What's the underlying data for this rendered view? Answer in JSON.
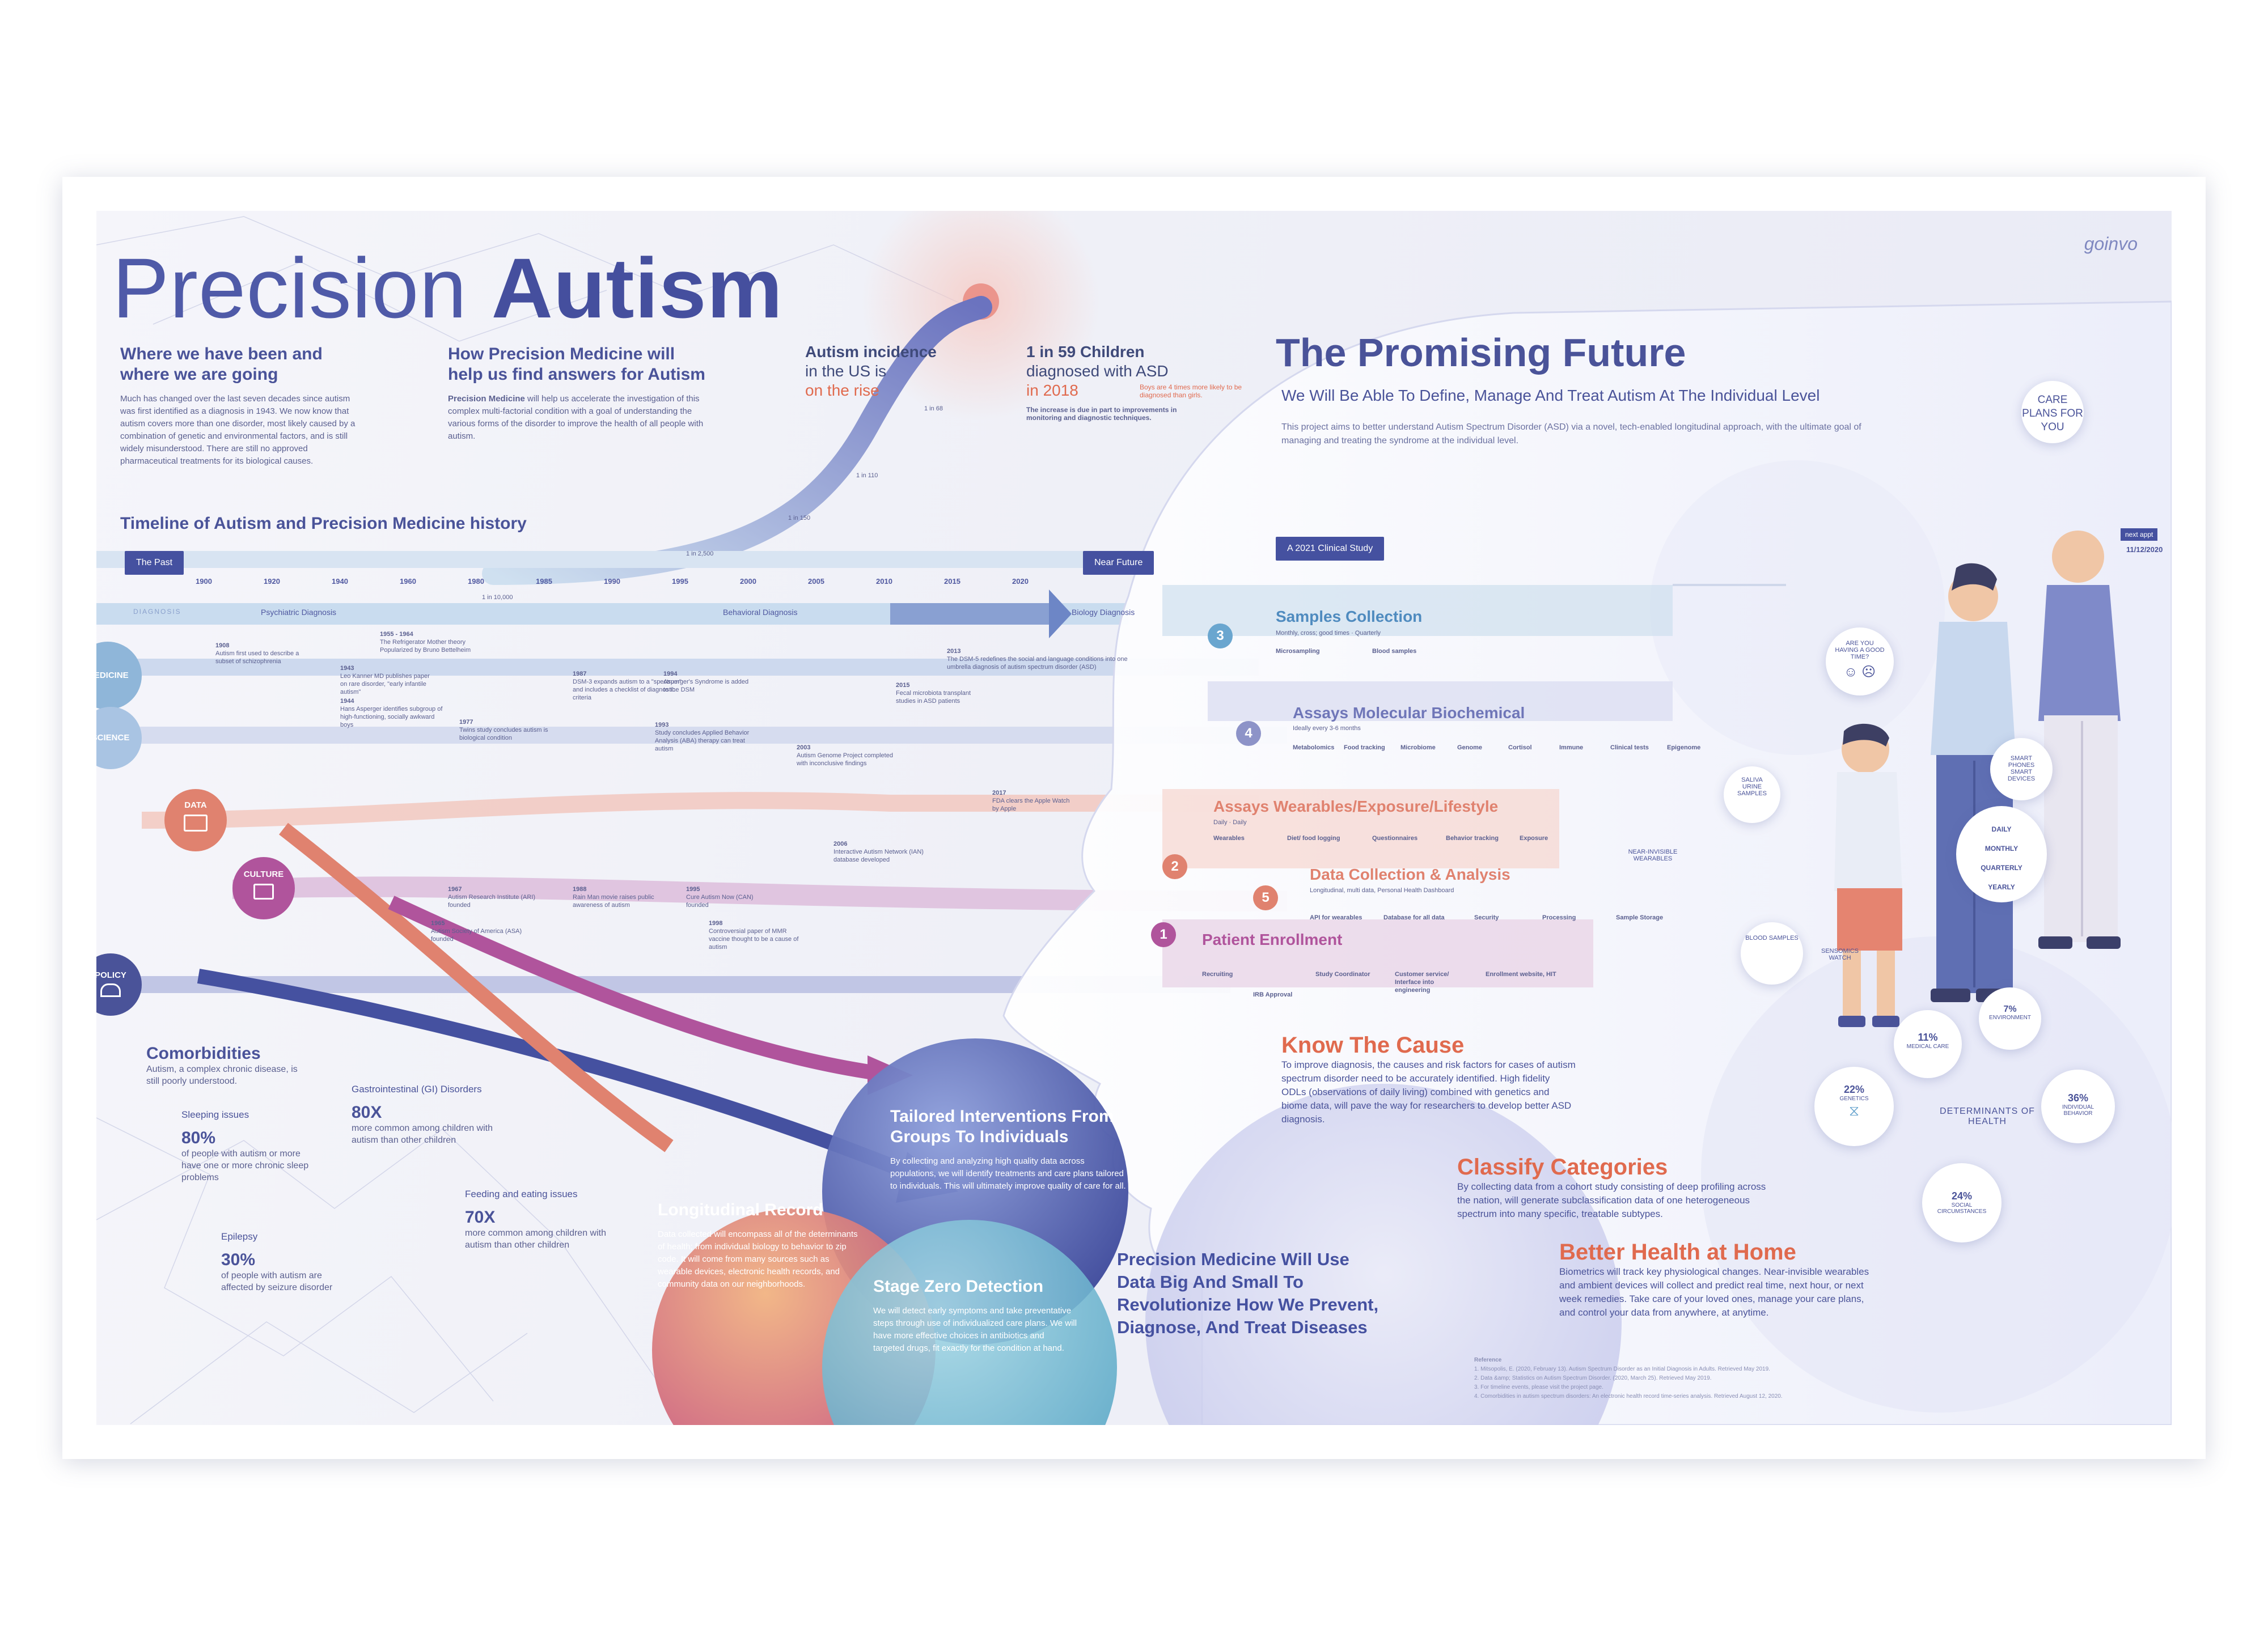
{
  "title": {
    "light": "Precision",
    "bold": "Autism"
  },
  "logo": "goinvo",
  "intro": {
    "heading": "Where we have been and where we are going",
    "body": "Much has changed over the last seven decades since autism was first identified as a diagnosis in 1943. We now know that autism covers more than one disorder, most likely caused by a combination of genetic and environmental factors, and is still widely misunderstood. There are still no approved pharmaceutical treatments for its biological causes."
  },
  "precision": {
    "heading": "How Precision Medicine will help us find answers for Autism",
    "lead": "Precision Medicine",
    "body": " will help us accelerate the investigation of this complex multi-factorial condition with a goal of understanding the various forms of the disorder to improve the health of all people with autism."
  },
  "incidence": {
    "line1": "Autism incidence",
    "line2": "in the US is",
    "line3": "on the rise"
  },
  "stat59": {
    "line1": "1 in 59 Children",
    "line2": "diagnosed with ASD",
    "line3": "in 2018",
    "note": "Boys are 4 times more likely to be diagnosed than girls.",
    "increase": "The increase is due in part to improvements in monitoring and diagnostic techniques."
  },
  "curve_points": [
    "1 in 10,000",
    "1 in 2,500",
    "1 in 150",
    "1 in 110",
    "1 in 68",
    "1 in 59"
  ],
  "timeline": {
    "heading": "Timeline of Autism and Precision Medicine history",
    "past": "The Past",
    "future": "Near Future",
    "years": [
      "1900",
      "1920",
      "1940",
      "1960",
      "1980",
      "1985",
      "1990",
      "1995",
      "2000",
      "2005",
      "2010",
      "2015",
      "2020"
    ],
    "diagnosis_label": "DIAGNOSIS",
    "phases": [
      "Psychiatric Diagnosis",
      "Behavioral Diagnosis",
      "Biology Diagnosis"
    ],
    "categories": [
      {
        "label": "MEDICINE",
        "color": "#8fb6d9"
      },
      {
        "label": "SCIENCE",
        "color": "#a9c4e3"
      },
      {
        "label": "DATA",
        "color": "#e0826f"
      },
      {
        "label": "CULTURE",
        "color": "#b0549c"
      },
      {
        "label": "POLICY",
        "color": "#4a5399"
      }
    ],
    "events": [
      {
        "year": "1908",
        "text": "Autism first used to describe a subset of schizophrenia"
      },
      {
        "year": "1943",
        "text": "Leo Kanner MD publishes paper on rare disorder, \"early infantile autism\""
      },
      {
        "year": "1944",
        "text": "Hans Asperger identifies subgroup of high-functioning, socially awkward boys"
      },
      {
        "year": "1955 - 1964",
        "text": "The Refrigerator Mother theory Popularized by Bruno Bettelheim"
      },
      {
        "year": "1967",
        "text": "Autism Research Institute (ARI) founded"
      },
      {
        "year": "1965",
        "text": "Autism Society of America (ASA) founded"
      },
      {
        "year": "1977",
        "text": "Twins study concludes autism is biological condition"
      },
      {
        "year": "1987",
        "text": "DSM-3 expands autism to a \"spectrum\" and includes a checklist of diagnostic criteria"
      },
      {
        "year": "1988",
        "text": "Rain Man movie raises public awareness of autism"
      },
      {
        "year": "1993",
        "text": "Study concludes Applied Behavior Analysis (ABA) therapy can treat autism"
      },
      {
        "year": "1994",
        "text": "Asperger's Syndrome is added to the DSM"
      },
      {
        "year": "1995",
        "text": "Cure Autism Now (CAN) founded"
      },
      {
        "year": "1998",
        "text": "Controversial paper of MMR vaccine thought to be a cause of autism"
      },
      {
        "year": "2003",
        "text": "Autism Genome Project completed with inconclusive findings"
      },
      {
        "year": "2006",
        "text": "Interactive Autism Network (IAN) database developed"
      },
      {
        "year": "2013",
        "text": "The DSM-5 redefines the social and language conditions into one umbrella diagnosis of autism spectrum disorder (ASD)"
      },
      {
        "year": "2015",
        "text": "Fecal microbiota transplant studies in ASD patients"
      },
      {
        "year": "2017",
        "text": "FDA clears the Apple Watch by Apple"
      }
    ]
  },
  "comorbidities": {
    "heading": "Comorbidities",
    "sub": "Autism, a complex chronic disease, is still poorly understood.",
    "items": [
      {
        "label": "Sleeping issues",
        "value": "80%",
        "desc": "of people with autism or more have one or more chronic sleep problems"
      },
      {
        "label": "Gastrointestinal (GI) Disorders",
        "value": "80X",
        "desc": "more common among children with autism than other children"
      },
      {
        "label": "Feeding and eating issues",
        "value": "70X",
        "desc": "more common among children with autism than other children"
      },
      {
        "label": "Epilepsy",
        "value": "30%",
        "desc": "of people with autism are affected by seizure disorder"
      }
    ]
  },
  "bubbles": {
    "tailored": {
      "title": "Tailored Interventions From Groups To Individuals",
      "body": "By collecting and analyzing high quality data across populations, we will identify treatments and care plans tailored to individuals. This will ultimately improve quality of care for all."
    },
    "longitudinal": {
      "title": "Longitudinal Record",
      "body": "Data collected will encompass all of the determinants of health; from individual biology to behavior to zip code. It will come from many sources such as wearable devices, electronic health records, and community data on our neighborhoods."
    },
    "stage_zero": {
      "title": "Stage Zero Detection",
      "body": "We will detect early symptoms and take preventative steps through use of individualized care plans. We will have more effective choices in antibiotics and targeted drugs, fit exactly for the condition at hand."
    },
    "big_small": {
      "title": "Precision Medicine Will Use Data Big And Small To Revolutionize How We Prevent, Diagnose, And Treat Diseases"
    }
  },
  "future": {
    "heading": "The Promising Future",
    "sub": "We Will Be Able To Define, Manage And Treat Autism At The Individual Level",
    "body": "This project aims to better understand Autism Spectrum Disorder (ASD) via a novel, tech-enabled longitudinal approach, with the ultimate goal of managing and treating the syndrome at the individual level.",
    "study_tag": "A 2021 Clinical Study",
    "steps": [
      {
        "num": "3",
        "title": "Samples Collection",
        "color": "#6aa6cf",
        "detail": "Monthly, cross; good times · Quarterly",
        "items": [
          "Microsampling",
          "Blood samples"
        ]
      },
      {
        "num": "4",
        "title": "Assays Molecular Biochemical",
        "color": "#8d93c8",
        "detail": "Ideally every 3-6 months",
        "items": [
          "Metabolomics",
          "Food tracking",
          "Microbiome",
          "Genome",
          "Cortisol",
          "Immune",
          "Clinical tests",
          "Epigenome"
        ]
      },
      {
        "num": "2",
        "title": "Assays Wearables/Exposure/Lifestyle",
        "color": "#e0826f",
        "detail": "Daily · Daily",
        "items": [
          "Wearables",
          "Diet/ food logging",
          "Questionnaires",
          "Behavior tracking",
          "Exposure"
        ]
      },
      {
        "num": "5",
        "title": "Data Collection & Analysis",
        "color": "#e0826f",
        "detail": "Longitudinal, multi data, Personal Health Dashboard",
        "items": [
          "API for wearables",
          "Database for all data",
          "Security",
          "Processing",
          "Sample Storage"
        ]
      },
      {
        "num": "1",
        "title": "Patient Enrollment",
        "color": "#b0549c",
        "detail": "",
        "items": [
          "Recruiting",
          "IRB Approval",
          "Study Coordinator",
          "Customer service/ Interface into engineering",
          "Enrollment website, HIT"
        ]
      }
    ],
    "know": {
      "title": "Know The Cause",
      "body": "To improve diagnosis, the causes and risk factors for cases of autism spectrum disorder need to be accurately identified. High fidelity ODLs (observations of daily living) combined with genetics and biome data, will pave the way for researchers to develop better ASD diagnosis."
    },
    "classify": {
      "title": "Classify Categories",
      "body": "By collecting data from a cohort study consisting of deep profiling across the nation, will generate subclassification data of one heterogeneous spectrum into many specific, treatable subtypes."
    },
    "home": {
      "title": "Better Health at Home",
      "body": "Biometrics will track key physiological changes. Near-invisible wearables and ambient devices will collect and predict real time, next hour, or next week remedies. Take care of your loved ones, manage your care plans, and control your data from anywhere, at anytime."
    }
  },
  "right_panel": {
    "care_plans": "CARE PLANS FOR YOU",
    "next_appt": "next appt",
    "next_date": "11/12/2020",
    "question": "ARE YOU HAVING A GOOD TIME?",
    "saliva": "SALIVA URINE SAMPLES",
    "smart": "SMART PHONES SMART DEVICES",
    "freq": [
      "DAILY",
      "MONTHLY",
      "QUARTERLY",
      "YEARLY"
    ],
    "near_invisible": "NEAR-INVISIBLE WEARABLES",
    "blood": "BLOOD SAMPLES",
    "senso": "SENSOMICS WATCH",
    "determinants": "DETERMINANTS OF HEALTH",
    "det_items": [
      {
        "value": "7%",
        "label": "ENVIRONMENT"
      },
      {
        "value": "11%",
        "label": "MEDICAL CARE"
      },
      {
        "value": "22%",
        "label": "GENETICS"
      },
      {
        "value": "36%",
        "label": "INDIVIDUAL BEHAVIOR"
      },
      {
        "value": "24%",
        "label": "SOCIAL CIRCUMSTANCES"
      }
    ]
  },
  "reference": {
    "heading": "Reference",
    "items": [
      "1. Mitsopolis, E. (2020, February 13). Autism Spectrum Disorder as an Initial Diagnosis in Adults. Retrieved May 2019.",
      "2. Data &amp; Statistics on Autism Spectrum Disorder. (2020, March 25). Retrieved May 2019.",
      "3. For timeline events, please visit the project page.",
      "4. Comorbidities in autism spectrum disorders: An electronic health record time-series analysis. Retrieved August 12, 2020."
    ]
  },
  "colors": {
    "navy": "#4551a0",
    "coral": "#e06a4e",
    "magenta": "#b0549c",
    "teal": "#6aa6cf",
    "lavender": "#8d93c8"
  }
}
